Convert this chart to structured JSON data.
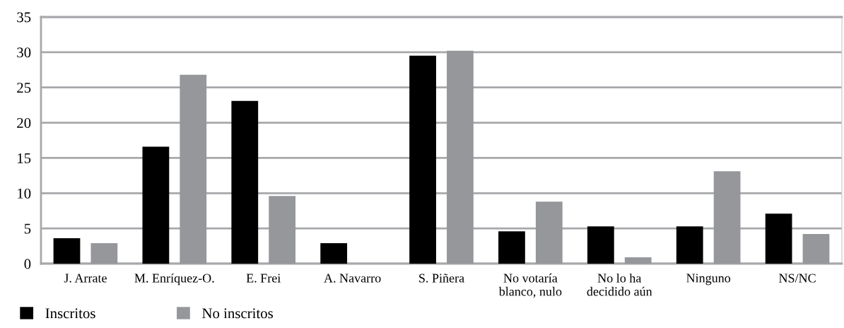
{
  "chart_data": {
    "type": "bar",
    "categories": [
      "J. Arrate",
      "M. Enríquez-O.",
      "E. Frei",
      "A. Navarro",
      "S. Piñera",
      "No votaría\nblanco, nulo",
      "No lo ha\ndecidido aún",
      "Ninguno",
      "NS/NC"
    ],
    "series": [
      {
        "name": "Inscritos",
        "color": "#000000",
        "values": [
          3.6,
          16.6,
          23.1,
          2.9,
          29.5,
          4.6,
          5.3,
          5.3,
          7.1
        ]
      },
      {
        "name": "No inscritos",
        "color": "#96979b",
        "values": [
          2.9,
          26.8,
          9.6,
          null,
          30.2,
          8.8,
          0.9,
          13.1,
          4.2
        ]
      }
    ],
    "ylim": [
      0,
      35
    ],
    "yticks": [
      0,
      5,
      10,
      15,
      20,
      25,
      30,
      35
    ],
    "grid": "y",
    "legend": "bottom left"
  }
}
